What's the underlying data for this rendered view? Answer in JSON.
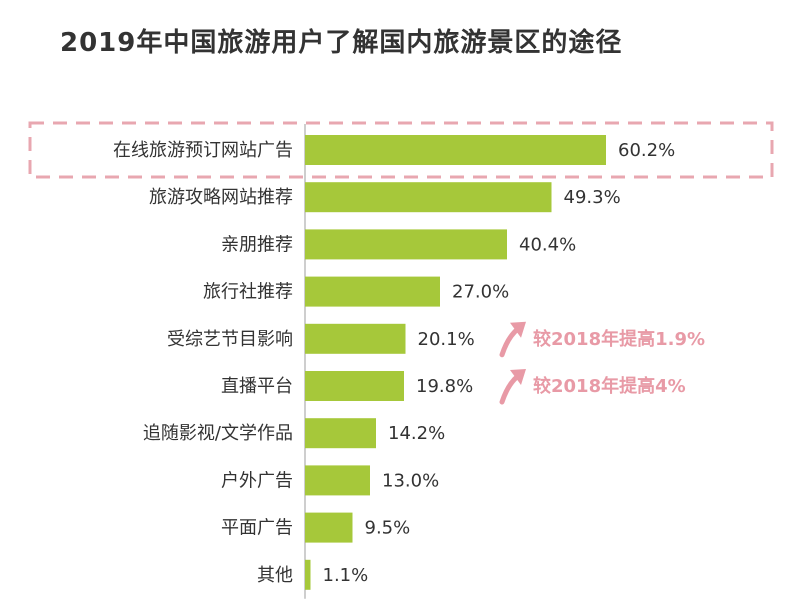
{
  "colors": {
    "bar": "#a6c83a",
    "axis": "#bdbdbd",
    "highlight_box": "#e8a7b0",
    "note": "#e89aa6"
  },
  "chart_data": {
    "type": "bar",
    "orientation": "horizontal",
    "title": "2019年中国旅游用户了解国内旅游景区的途径",
    "categories": [
      "在线旅游预订网站广告",
      "旅游攻略网站推荐",
      "亲朋推荐",
      "旅行社推荐",
      "受综艺节目影响",
      "直播平台",
      "追随影视/文学作品",
      "户外广告",
      "平面广告",
      "其他"
    ],
    "values": [
      60.2,
      49.3,
      40.4,
      27.0,
      20.1,
      19.8,
      14.2,
      13.0,
      9.5,
      1.1
    ],
    "value_labels": [
      "60.2%",
      "49.3%",
      "40.4%",
      "27.0%",
      "20.1%",
      "19.8%",
      "14.2%",
      "13.0%",
      "9.5%",
      "1.1%"
    ],
    "xlim": [
      0,
      100
    ],
    "grid": false,
    "legend": "none",
    "highlight_index": 0,
    "annotations": [
      {
        "index": 4,
        "icon": "up-arrow-icon",
        "text": "较2018年提高1.9%"
      },
      {
        "index": 5,
        "icon": "up-arrow-icon",
        "text": "较2018年提高4%"
      }
    ]
  }
}
